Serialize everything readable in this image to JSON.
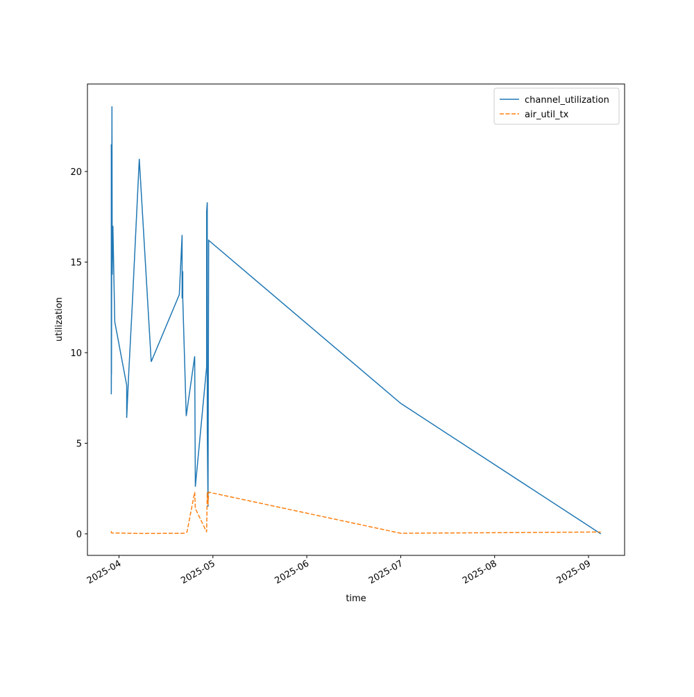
{
  "chart_data": {
    "type": "line",
    "x_label": "time",
    "y_label": "utilization",
    "series": [
      {
        "name": "channel_utilization",
        "color": "#1f77b4",
        "dash": "solid",
        "x": [
          3.918,
          3.918,
          3.92,
          3.92,
          3.925,
          3.928,
          3.935,
          3.955,
          4.082,
          4.082,
          4.104,
          4.142,
          4.216,
          4.343,
          4.642,
          4.672,
          4.672,
          4.679,
          4.679,
          4.716,
          4.806,
          4.813,
          4.933,
          4.933,
          4.94,
          4.94,
          4.948,
          4.955,
          7.0,
          9.13
        ],
        "values": [
          21.5,
          7.7,
          10.5,
          8.8,
          23.6,
          14.3,
          17,
          11.7,
          8.2,
          6.4,
          8.9,
          12.7,
          20.7,
          9.5,
          13.2,
          16.5,
          13,
          14.5,
          13,
          6.5,
          9.8,
          2.6,
          9.2,
          17.8,
          18.3,
          5.6,
          1.5,
          16.2,
          7.2,
          0
        ]
      },
      {
        "name": "air_util_tx",
        "color": "#ff7f0e",
        "dash": "dashed",
        "x": [
          3.918,
          3.92,
          4.216,
          4.701,
          4.724,
          4.806,
          4.813,
          4.933,
          4.94,
          4.948,
          4.955,
          7.0,
          9.13
        ],
        "values": [
          0.15,
          0.05,
          0.02,
          0.03,
          0.1,
          2.3,
          1.4,
          0.1,
          2.3,
          1.6,
          2.3,
          0.03,
          0.1
        ]
      }
    ],
    "xlim": [
      3.664,
      9.384
    ],
    "xticks": [
      {
        "value": 4,
        "label": "2025-04"
      },
      {
        "value": 5,
        "label": "2025-05"
      },
      {
        "value": 6,
        "label": "2025-06"
      },
      {
        "value": 7,
        "label": "2025-07"
      },
      {
        "value": 8,
        "label": "2025-08"
      },
      {
        "value": 9,
        "label": "2025-09"
      }
    ],
    "ylim": [
      -1.19,
      24.83
    ],
    "yticks": [
      0,
      5,
      10,
      15,
      20
    ],
    "legend": "upper right"
  }
}
